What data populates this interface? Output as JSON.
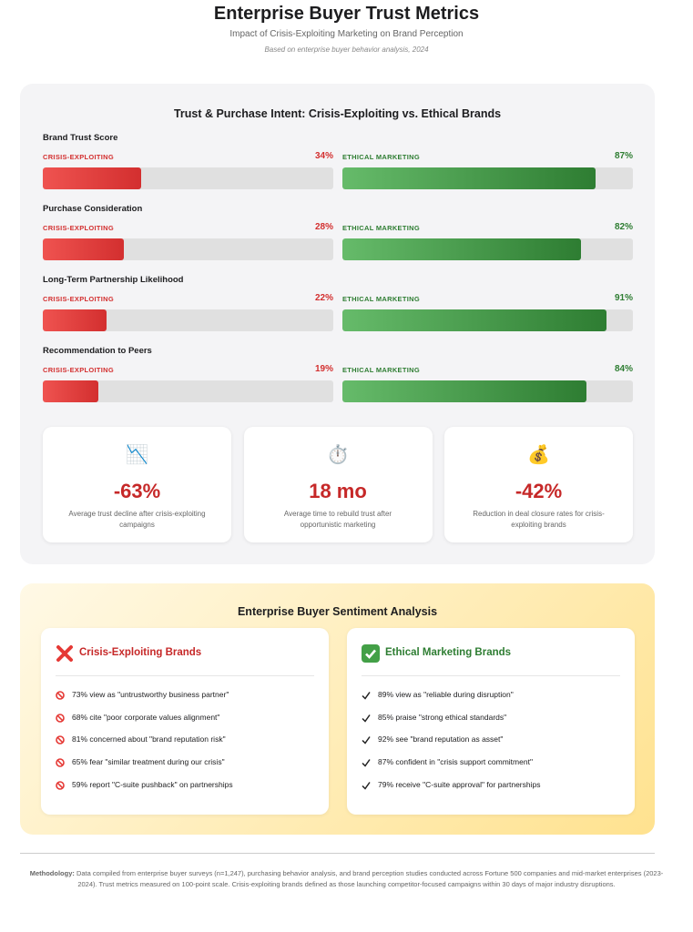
{
  "header": {
    "title": "Enterprise Buyer Trust Metrics",
    "subtitle": "Impact of Crisis-Exploiting Marketing on Brand Perception",
    "note": "Based on enterprise buyer behavior analysis, 2024"
  },
  "chart_data": {
    "type": "bar",
    "title": "Trust & Purchase Intent: Crisis-Exploiting vs. Ethical Brands",
    "categories": [
      "Brand Trust Score",
      "Purchase Consideration",
      "Long-Term Partnership Likelihood",
      "Recommendation to Peers"
    ],
    "series": [
      {
        "name": "CRISIS-EXPLOITING",
        "color": "#d32f2f",
        "values": [
          34,
          28,
          22,
          19
        ],
        "value_labels": [
          "34%",
          "28%",
          "22%",
          "19%"
        ]
      },
      {
        "name": "ETHICAL MARKETING",
        "color": "#2e7d32",
        "values": [
          87,
          82,
          91,
          84
        ],
        "value_labels": [
          "87%",
          "82%",
          "91%",
          "84%"
        ]
      }
    ],
    "xlim": [
      0,
      100
    ]
  },
  "stats": [
    {
      "icon": "📉",
      "value": "-63%",
      "text": "Average trust decline after crisis-exploiting campaigns"
    },
    {
      "icon": "⏱️",
      "value": "18 mo",
      "text": "Average time to rebuild trust after opportunistic marketing"
    },
    {
      "icon": "💰",
      "value": "-42%",
      "text": "Reduction in deal closure rates for crisis-exploiting brands"
    }
  ],
  "sentiment": {
    "title": "Enterprise Buyer Sentiment Analysis",
    "columns": [
      {
        "heading": "Crisis-Exploiting Brands",
        "items": [
          "73% view as \"untrustworthy business partner\"",
          "68% cite \"poor corporate values alignment\"",
          "81% concerned about \"brand reputation risk\"",
          "65% fear \"similar treatment during our crisis\"",
          "59% report \"C-suite pushback\" on partnerships"
        ]
      },
      {
        "heading": "Ethical Marketing Brands",
        "items": [
          "89% view as \"reliable during disruption\"",
          "85% praise \"strong ethical standards\"",
          "92% see \"brand reputation as asset\"",
          "87% confident in \"crisis support commitment\"",
          "79% receive \"C-suite approval\" for partnerships"
        ]
      }
    ]
  },
  "methodology": {
    "label": "Methodology:",
    "text": "Data compiled from enterprise buyer surveys (n=1,247), purchasing behavior analysis, and brand perception studies conducted across Fortune 500 companies and mid-market enterprises (2023-2024). Trust metrics measured on 100-point scale. Crisis-exploiting brands defined as those launching competitor-focused campaigns within 30 days of major industry disruptions."
  }
}
